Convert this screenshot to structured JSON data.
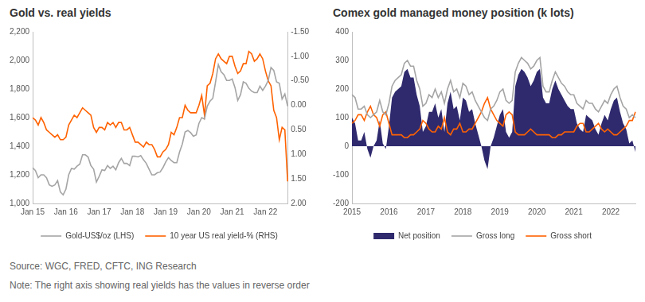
{
  "chart_data": [
    {
      "type": "line",
      "title": "Gold vs. real yields",
      "categories": [
        "Jan 15",
        null,
        null,
        null,
        null,
        null,
        null,
        null,
        null,
        null,
        null,
        null,
        "Jan 16",
        null,
        null,
        null,
        null,
        null,
        null,
        null,
        null,
        null,
        null,
        null,
        "Jan 17",
        null,
        null,
        null,
        null,
        null,
        null,
        null,
        null,
        null,
        null,
        null,
        "Jan 18",
        null,
        null,
        null,
        null,
        null,
        null,
        null,
        null,
        null,
        null,
        null,
        "Jan 19",
        null,
        null,
        null,
        null,
        null,
        null,
        null,
        null,
        null,
        null,
        null,
        "Jan 20",
        null,
        null,
        null,
        null,
        null,
        null,
        null,
        null,
        null,
        null,
        null,
        "Jan 21",
        null,
        null,
        null,
        null,
        null,
        null,
        null,
        null,
        null,
        null,
        null,
        "Jan 22",
        null,
        null,
        null,
        null,
        null,
        null,
        null,
        null
      ],
      "series": [
        {
          "name": "Gold-US$/oz (LHS)",
          "color": "#a5a5a5",
          "values": [
            1250,
            1230,
            1180,
            1200,
            1200,
            1180,
            1130,
            1120,
            1130,
            1160,
            1080,
            1060,
            1100,
            1200,
            1245,
            1240,
            1260,
            1275,
            1340,
            1340,
            1325,
            1265,
            1240,
            1150,
            1190,
            1235,
            1230,
            1265,
            1245,
            1260,
            1235,
            1285,
            1315,
            1280,
            1280,
            1265,
            1330,
            1330,
            1325,
            1335,
            1305,
            1280,
            1240,
            1200,
            1200,
            1215,
            1220,
            1250,
            1290,
            1320,
            1300,
            1285,
            1285,
            1360,
            1415,
            1500,
            1510,
            1495,
            1470,
            1480,
            1560,
            1600,
            1590,
            1680,
            1715,
            1735,
            1850,
            1970,
            1920,
            1900,
            1860,
            1860,
            1870,
            1810,
            1720,
            1760,
            1850,
            1840,
            1805,
            1785,
            1775,
            1775,
            1820,
            1790,
            1820,
            1860,
            1950,
            1930,
            1850,
            1840,
            1730,
            1765,
            1680
          ]
        },
        {
          "name": "10 year US real yield-% (RHS)",
          "color": "#ff6200",
          "axis": "y2",
          "values": [
            0.25,
            0.3,
            0.4,
            0.25,
            0.35,
            0.5,
            0.55,
            0.6,
            0.65,
            0.6,
            0.7,
            0.7,
            0.65,
            0.4,
            0.3,
            0.2,
            0.25,
            0.15,
            0.05,
            0.1,
            0.15,
            0.2,
            0.45,
            0.55,
            0.45,
            0.45,
            0.5,
            0.35,
            0.4,
            0.35,
            0.45,
            0.35,
            0.35,
            0.5,
            0.5,
            0.45,
            0.6,
            0.75,
            0.75,
            0.8,
            0.85,
            0.75,
            0.8,
            0.8,
            0.9,
            1.05,
            1.05,
            0.95,
            0.9,
            0.8,
            0.55,
            0.6,
            0.45,
            0.25,
            0.25,
            0,
            0.1,
            0.15,
            0.15,
            0.15,
            0,
            -0.2,
            0.2,
            -0.4,
            -0.45,
            -0.65,
            -0.95,
            -1.05,
            -0.95,
            -0.9,
            -0.85,
            -1,
            -1,
            -0.8,
            -0.65,
            -0.7,
            -0.85,
            -0.85,
            -1.1,
            -1.05,
            -0.9,
            -0.95,
            -1.05,
            -0.95,
            -0.7,
            -0.5,
            -0.4,
            0.1,
            0.25,
            0.7,
            0.45,
            0.5,
            1.55
          ]
        }
      ],
      "ylim": [
        1000,
        2200
      ],
      "yticks": [
        {
          "value": 1000,
          "label": "1,000"
        },
        {
          "value": 1200,
          "label": "1,200"
        },
        {
          "value": 1400,
          "label": "1,400"
        },
        {
          "value": 1600,
          "label": "1,600"
        },
        {
          "value": 1800,
          "label": "1,800"
        },
        {
          "value": 2000,
          "label": "2,000"
        },
        {
          "value": 2200,
          "label": "2,200"
        }
      ],
      "y2lim": [
        2.0,
        -1.5
      ],
      "y2ticks": [
        {
          "value": -1.5,
          "label": "-1.50"
        },
        {
          "value": -1,
          "label": "-1.00"
        },
        {
          "value": -0.5,
          "label": "-0.50"
        },
        {
          "value": 0,
          "label": "0.00"
        },
        {
          "value": 0.5,
          "label": "0.50"
        },
        {
          "value": 1,
          "label": "1.00"
        },
        {
          "value": 1.5,
          "label": "1.50"
        },
        {
          "value": 2,
          "label": "2.00"
        }
      ],
      "grid": false,
      "legend": "bottom"
    },
    {
      "type": "line",
      "title": "Comex gold managed money position (k lots)",
      "categories": [
        "2015",
        null,
        null,
        null,
        null,
        null,
        null,
        null,
        null,
        null,
        null,
        null,
        "2016",
        null,
        null,
        null,
        null,
        null,
        null,
        null,
        null,
        null,
        null,
        null,
        "2017",
        null,
        null,
        null,
        null,
        null,
        null,
        null,
        null,
        null,
        null,
        null,
        "2018",
        null,
        null,
        null,
        null,
        null,
        null,
        null,
        null,
        null,
        null,
        null,
        "2019",
        null,
        null,
        null,
        null,
        null,
        null,
        null,
        null,
        null,
        null,
        null,
        "2020",
        null,
        null,
        null,
        null,
        null,
        null,
        null,
        null,
        null,
        null,
        null,
        "2021",
        null,
        null,
        null,
        null,
        null,
        null,
        null,
        null,
        null,
        null,
        null,
        "2022",
        null,
        null,
        null,
        null,
        null,
        null,
        null,
        null
      ],
      "series": [
        {
          "name": "Net position",
          "type": "area",
          "color": "#2f2a6e",
          "values": [
            100,
            80,
            20,
            20,
            50,
            -10,
            -40,
            0,
            20,
            90,
            10,
            -10,
            70,
            170,
            190,
            200,
            210,
            260,
            270,
            240,
            240,
            180,
            140,
            50,
            70,
            120,
            120,
            150,
            100,
            130,
            50,
            150,
            190,
            130,
            140,
            90,
            170,
            160,
            120,
            130,
            80,
            40,
            0,
            -50,
            -80,
            0,
            30,
            70,
            110,
            130,
            50,
            30,
            50,
            210,
            250,
            270,
            260,
            240,
            210,
            230,
            260,
            270,
            170,
            150,
            150,
            200,
            230,
            200,
            180,
            160,
            140,
            130,
            130,
            80,
            60,
            50,
            110,
            100,
            90,
            60,
            40,
            80,
            110,
            90,
            130,
            160,
            170,
            120,
            80,
            60,
            10,
            20,
            -20
          ]
        },
        {
          "name": "Gross long",
          "color": "#a5a5a5",
          "values": [
            180,
            170,
            130,
            130,
            140,
            110,
            100,
            110,
            120,
            160,
            120,
            110,
            150,
            210,
            230,
            240,
            250,
            290,
            300,
            280,
            280,
            230,
            200,
            140,
            150,
            180,
            170,
            200,
            170,
            190,
            150,
            200,
            230,
            190,
            200,
            170,
            220,
            210,
            180,
            190,
            160,
            140,
            120,
            100,
            90,
            130,
            140,
            160,
            190,
            200,
            160,
            150,
            160,
            260,
            290,
            310,
            300,
            290,
            270,
            280,
            300,
            310,
            210,
            190,
            190,
            230,
            260,
            240,
            220,
            210,
            190,
            180,
            180,
            150,
            140,
            130,
            160,
            150,
            150,
            130,
            120,
            140,
            160,
            150,
            180,
            200,
            210,
            170,
            140,
            130,
            100,
            110,
            100
          ]
        },
        {
          "name": "Gross short",
          "color": "#ff6200",
          "values": [
            80,
            90,
            110,
            110,
            90,
            120,
            140,
            110,
            100,
            70,
            110,
            120,
            80,
            40,
            40,
            40,
            40,
            30,
            30,
            40,
            40,
            50,
            60,
            90,
            80,
            60,
            50,
            50,
            70,
            60,
            100,
            50,
            40,
            60,
            60,
            80,
            50,
            50,
            60,
            60,
            80,
            100,
            120,
            150,
            170,
            130,
            110,
            90,
            80,
            70,
            110,
            120,
            110,
            50,
            40,
            40,
            40,
            50,
            60,
            50,
            40,
            40,
            40,
            40,
            40,
            30,
            30,
            40,
            40,
            50,
            50,
            50,
            50,
            70,
            80,
            80,
            50,
            50,
            60,
            70,
            80,
            60,
            50,
            60,
            50,
            40,
            40,
            50,
            60,
            70,
            90,
            90,
            120
          ]
        }
      ],
      "ylim": [
        -200,
        400
      ],
      "yticks": [
        -200,
        -100,
        0,
        100,
        200,
        300,
        400
      ],
      "grid": false,
      "legend": "bottom"
    }
  ],
  "source": "Source: WGC, FRED, CFTC, ING Research",
  "note": "Note: The right axis showing real yields has the values in reverse order"
}
